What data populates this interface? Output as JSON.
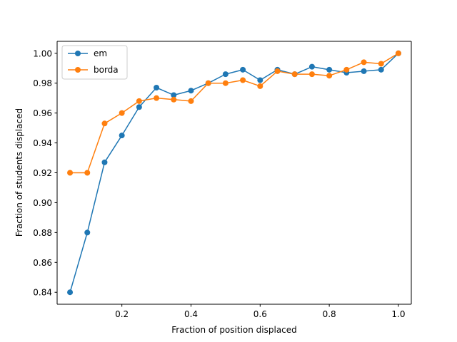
{
  "chart_data": {
    "type": "line",
    "title": "",
    "xlabel": "Fraction of position displaced",
    "ylabel": "Fraction of students displaced",
    "xlim": [
      0.0,
      1.0
    ],
    "ylim": [
      0.84,
      1.0
    ],
    "x_ticks": [
      "0.2",
      "0.4",
      "0.6",
      "0.8",
      "1.0"
    ],
    "y_ticks": [
      "0.84",
      "0.86",
      "0.88",
      "0.90",
      "0.92",
      "0.94",
      "0.96",
      "0.98",
      "1.00"
    ],
    "grid": false,
    "legend_position": "top-left",
    "x": [
      0.05,
      0.1,
      0.15,
      0.2,
      0.25,
      0.3,
      0.35,
      0.4,
      0.45,
      0.5,
      0.55,
      0.6,
      0.65,
      0.7,
      0.75,
      0.8,
      0.85,
      0.9,
      0.95,
      1.0
    ],
    "series": [
      {
        "name": "em",
        "color": "#1f77b4",
        "values": [
          0.84,
          0.88,
          0.927,
          0.945,
          0.964,
          0.977,
          0.972,
          0.975,
          0.98,
          0.986,
          0.989,
          0.982,
          0.989,
          0.986,
          0.991,
          0.989,
          0.987,
          0.988,
          0.989,
          1.0
        ]
      },
      {
        "name": "borda",
        "color": "#ff7f0e",
        "values": [
          0.92,
          0.92,
          0.953,
          0.96,
          0.968,
          0.97,
          0.969,
          0.968,
          0.98,
          0.98,
          0.982,
          0.978,
          0.988,
          0.986,
          0.986,
          0.985,
          0.989,
          0.994,
          0.993,
          1.0
        ]
      }
    ]
  }
}
